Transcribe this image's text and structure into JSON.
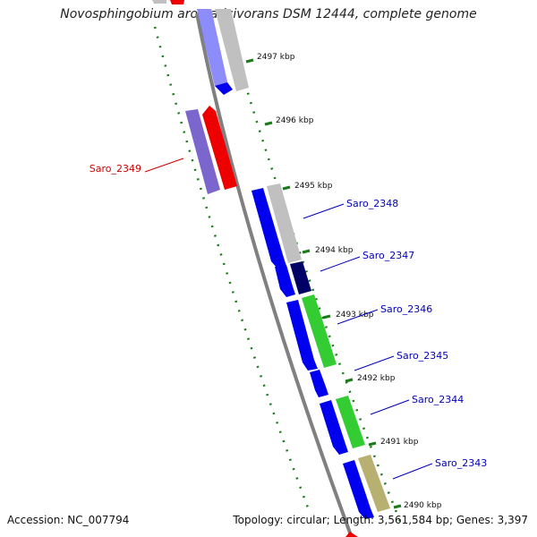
{
  "title": "Novosphingobium aromaticivorans DSM 12444, complete genome",
  "footer": {
    "accession": "Accession: NC_007794",
    "topology": "Topology: circular; Length: 3,561,584 bp; Genes: 3,397"
  },
  "scale_labels": [
    {
      "kbp": 2497,
      "label": "2497 kbp"
    },
    {
      "kbp": 2496,
      "label": "2496 kbp"
    },
    {
      "kbp": 2495,
      "label": "2495 kbp"
    },
    {
      "kbp": 2494,
      "label": "2494 kbp"
    },
    {
      "kbp": 2493,
      "label": "2493 kbp"
    },
    {
      "kbp": 2492,
      "label": "2492 kbp"
    },
    {
      "kbp": 2491,
      "label": "2491 kbp"
    },
    {
      "kbp": 2490,
      "label": "2490 kbp"
    }
  ],
  "gene_labels": [
    {
      "name": "Saro_2349",
      "color": "#cc0000"
    },
    {
      "name": "Saro_2348",
      "color": "#0000bb"
    },
    {
      "name": "Saro_2347",
      "color": "#0000bb"
    },
    {
      "name": "Saro_2346",
      "color": "#0000bb"
    },
    {
      "name": "Saro_2345",
      "color": "#0000bb"
    },
    {
      "name": "Saro_2344",
      "color": "#0000bb"
    },
    {
      "name": "Saro_2343",
      "color": "#0000bb"
    }
  ],
  "colors": {
    "backbone": "#808080",
    "forward_cds": "#0000ee",
    "reverse_cds": "#ee0000",
    "tick": "#1a7a1a",
    "cog_grey": "#c0c0c0",
    "cog_green": "#33cc33",
    "cog_navy": "#000066",
    "cog_khaki": "#b8b070",
    "cog_purple": "#7a66cc"
  }
}
